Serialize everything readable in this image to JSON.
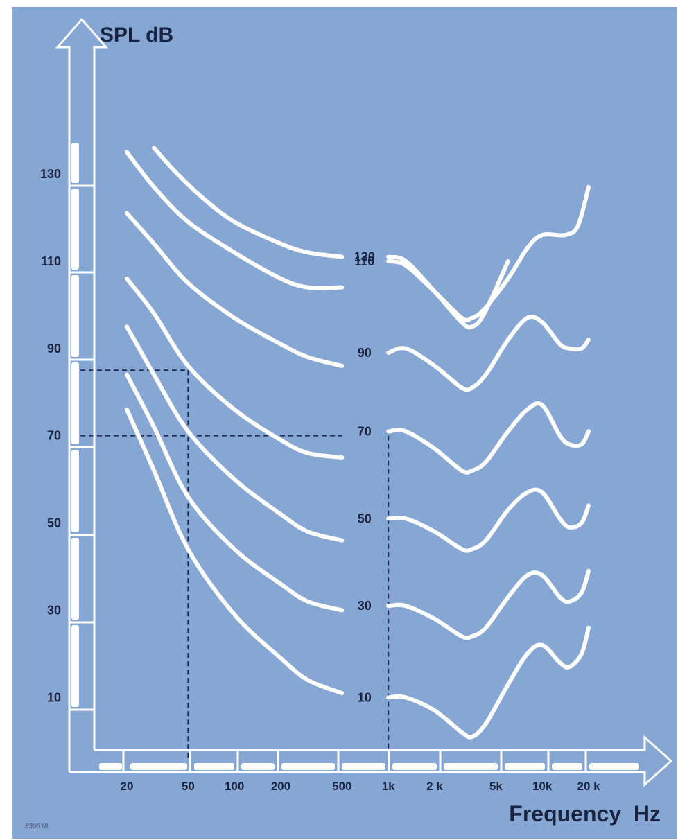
{
  "colors": {
    "background": "#86a6d4",
    "curve": "#ffffff",
    "text": "#1a2440",
    "guide": "#1f2d55"
  },
  "figure_code": "830618",
  "chart_data": {
    "type": "line",
    "title": "",
    "ylabel": "SPL dB",
    "xlabel": "Frequency  Hz",
    "x_scale": "log",
    "x_ticks": [
      {
        "value": 20,
        "label": "20"
      },
      {
        "value": 50,
        "label": "50"
      },
      {
        "value": 100,
        "label": "100"
      },
      {
        "value": 200,
        "label": "200"
      },
      {
        "value": 500,
        "label": "500"
      },
      {
        "value": 1000,
        "label": "1k"
      },
      {
        "value": 2000,
        "label": "2 k"
      },
      {
        "value": 5000,
        "label": "5k"
      },
      {
        "value": 10000,
        "label": "10k"
      },
      {
        "value": 20000,
        "label": "20 k"
      }
    ],
    "y_ticks": [
      {
        "value": 10,
        "label": "10"
      },
      {
        "value": 30,
        "label": "30"
      },
      {
        "value": 50,
        "label": "50"
      },
      {
        "value": 70,
        "label": "70"
      },
      {
        "value": 90,
        "label": "90"
      },
      {
        "value": 110,
        "label": "110"
      },
      {
        "value": 130,
        "label": "130"
      }
    ],
    "ylim": [
      -6,
      146
    ],
    "grid": false,
    "series": [
      {
        "name": "130",
        "left": [
          [
            30,
            136
          ],
          [
            40,
            131
          ],
          [
            60,
            125
          ],
          [
            100,
            119
          ],
          [
            200,
            114
          ],
          [
            300,
            112
          ],
          [
            500,
            111
          ]
        ],
        "right": [
          [
            1000,
            111
          ],
          [
            1300,
            110
          ],
          [
            2000,
            103
          ],
          [
            3000,
            96
          ],
          [
            3500,
            95
          ],
          [
            4200,
            98
          ],
          [
            6000,
            110
          ]
        ]
      },
      {
        "name": "110",
        "left": [
          [
            20,
            135
          ],
          [
            30,
            127
          ],
          [
            50,
            119
          ],
          [
            100,
            112
          ],
          [
            200,
            106
          ],
          [
            300,
            104
          ],
          [
            500,
            104
          ]
        ],
        "right": [
          [
            1000,
            110
          ],
          [
            1300,
            109
          ],
          [
            2000,
            103
          ],
          [
            3000,
            97
          ],
          [
            3500,
            97
          ],
          [
            4200,
            99
          ],
          [
            6000,
            106
          ],
          [
            8000,
            113
          ],
          [
            10000,
            116
          ],
          [
            14000,
            116
          ],
          [
            17000,
            118
          ],
          [
            20000,
            127
          ]
        ]
      },
      {
        "name": "90",
        "left": [
          [
            20,
            121
          ],
          [
            30,
            114
          ],
          [
            50,
            105
          ],
          [
            100,
            97
          ],
          [
            200,
            91
          ],
          [
            300,
            88
          ],
          [
            500,
            86
          ]
        ],
        "right": [
          [
            1000,
            89
          ],
          [
            1300,
            90
          ],
          [
            2000,
            86
          ],
          [
            3000,
            81
          ],
          [
            3500,
            81
          ],
          [
            4300,
            84
          ],
          [
            6000,
            92
          ],
          [
            8000,
            97
          ],
          [
            10000,
            96
          ],
          [
            13000,
            91
          ],
          [
            15000,
            90
          ],
          [
            18000,
            90
          ],
          [
            20000,
            92
          ]
        ]
      },
      {
        "name": "70",
        "left": [
          [
            20,
            106
          ],
          [
            30,
            98
          ],
          [
            50,
            86
          ],
          [
            100,
            76
          ],
          [
            200,
            69
          ],
          [
            300,
            66
          ],
          [
            500,
            65
          ]
        ],
        "right": [
          [
            1000,
            71
          ],
          [
            1300,
            71
          ],
          [
            2000,
            67
          ],
          [
            3000,
            62
          ],
          [
            3500,
            62
          ],
          [
            4300,
            64
          ],
          [
            6000,
            71
          ],
          [
            8000,
            76
          ],
          [
            10000,
            77
          ],
          [
            13000,
            70
          ],
          [
            15000,
            68
          ],
          [
            18000,
            68
          ],
          [
            20000,
            71
          ]
        ]
      },
      {
        "name": "50",
        "left": [
          [
            20,
            95
          ],
          [
            30,
            84
          ],
          [
            50,
            71
          ],
          [
            100,
            60
          ],
          [
            200,
            52
          ],
          [
            300,
            48
          ],
          [
            500,
            46
          ]
        ],
        "right": [
          [
            1000,
            51
          ],
          [
            1300,
            51
          ],
          [
            2000,
            48
          ],
          [
            3000,
            44
          ],
          [
            3500,
            44
          ],
          [
            4300,
            46
          ],
          [
            6000,
            53
          ],
          [
            8000,
            57
          ],
          [
            10000,
            57
          ],
          [
            13000,
            51
          ],
          [
            15000,
            49
          ],
          [
            18000,
            50
          ],
          [
            20000,
            54
          ]
        ]
      },
      {
        "name": "30",
        "left": [
          [
            20,
            84
          ],
          [
            30,
            72
          ],
          [
            50,
            56
          ],
          [
            100,
            44
          ],
          [
            200,
            36
          ],
          [
            300,
            32
          ],
          [
            500,
            30
          ]
        ],
        "right": [
          [
            1000,
            31
          ],
          [
            1300,
            31
          ],
          [
            2000,
            28
          ],
          [
            3000,
            24
          ],
          [
            3500,
            24
          ],
          [
            4300,
            26
          ],
          [
            6000,
            33
          ],
          [
            8000,
            38
          ],
          [
            10000,
            38
          ],
          [
            13000,
            33
          ],
          [
            15000,
            32
          ],
          [
            18000,
            34
          ],
          [
            20000,
            39
          ]
        ]
      },
      {
        "name": "10",
        "left": [
          [
            20,
            76
          ],
          [
            30,
            62
          ],
          [
            50,
            44
          ],
          [
            100,
            29
          ],
          [
            200,
            19
          ],
          [
            300,
            14
          ],
          [
            500,
            11
          ]
        ],
        "right": [
          [
            1000,
            10
          ],
          [
            1300,
            10
          ],
          [
            2000,
            7
          ],
          [
            3000,
            2
          ],
          [
            3500,
            1
          ],
          [
            4300,
            4
          ],
          [
            6000,
            13
          ],
          [
            8000,
            20
          ],
          [
            10000,
            22
          ],
          [
            13000,
            18
          ],
          [
            15000,
            17
          ],
          [
            18000,
            20
          ],
          [
            20000,
            26
          ]
        ]
      }
    ],
    "guides": [
      {
        "from": [
          10,
          85
        ],
        "to": [
          50,
          85
        ]
      },
      {
        "from": [
          50,
          85
        ],
        "to": [
          50,
          -4
        ]
      },
      {
        "from": [
          10,
          70
        ],
        "to": [
          500,
          70
        ]
      },
      {
        "from": [
          1000,
          70
        ],
        "to": [
          1000,
          -4
        ]
      }
    ]
  }
}
